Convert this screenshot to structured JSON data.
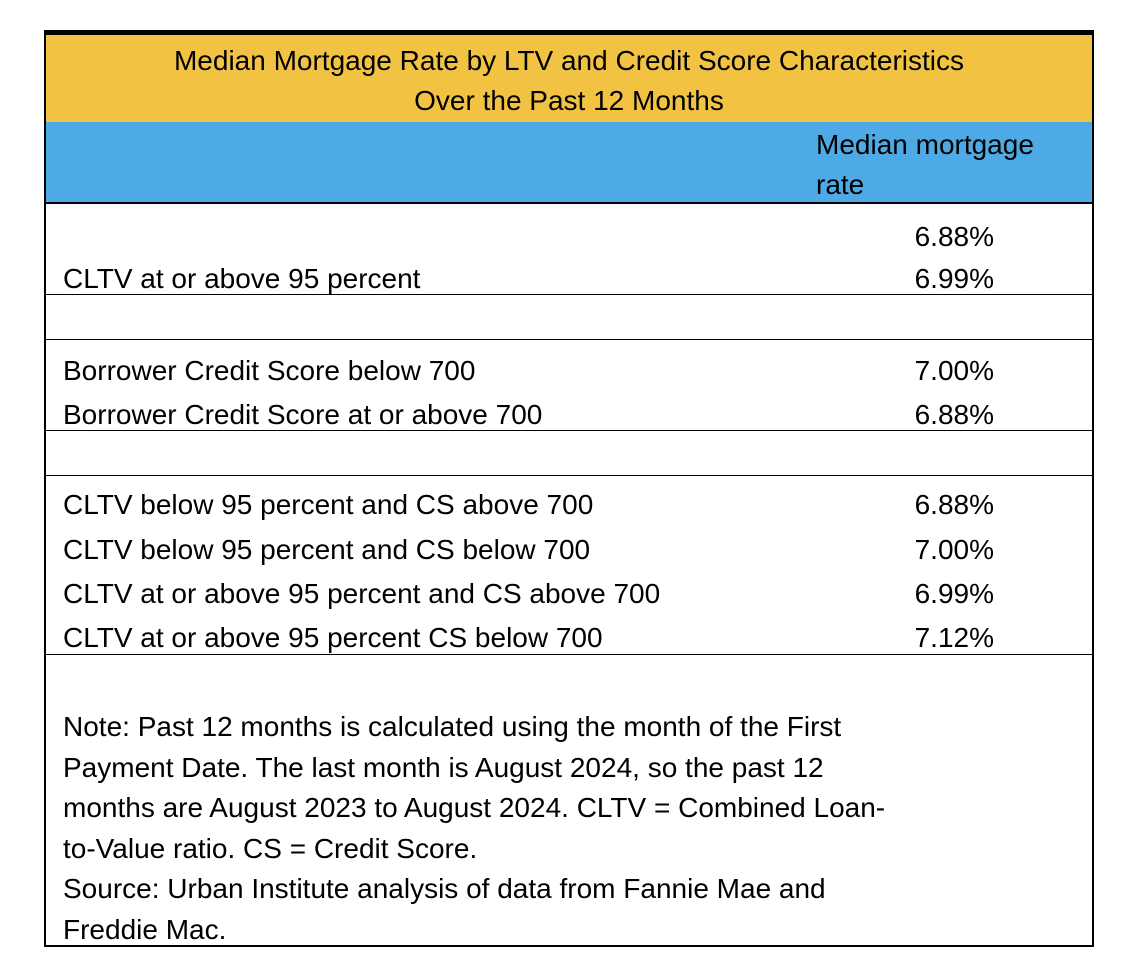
{
  "chart_data": {
    "type": "table",
    "title": "Median Mortgage Rate by LTV and Credit Score Characteristics Over the Past 12 Months",
    "title_lines": [
      "Median Mortgage Rate by LTV and Credit Score Characteristics",
      "Over the Past 12 Months"
    ],
    "columns": [
      "",
      "Median mortgage rate"
    ],
    "column_header_lines": [
      "Median mortgage",
      "rate"
    ],
    "groups": [
      {
        "rows": [
          {
            "label": "",
            "value": "6.88%"
          },
          {
            "label": "CLTV at or above 95 percent",
            "value": "6.99%"
          }
        ]
      },
      {
        "rows": [
          {
            "label": "Borrower Credit Score below 700",
            "value": "7.00%"
          },
          {
            "label": "Borrower Credit Score at or above 700",
            "value": "6.88%"
          }
        ]
      },
      {
        "rows": [
          {
            "label": "CLTV below 95 percent and CS above 700",
            "value": "6.88%"
          },
          {
            "label": "CLTV below 95 percent and CS below 700",
            "value": "7.00%"
          },
          {
            "label": "CLTV at or above 95 percent and CS above 700",
            "value": "6.99%"
          },
          {
            "label": "CLTV at or above 95 percent CS below 700",
            "value": "7.12%"
          }
        ]
      }
    ],
    "note_lines": [
      "Note: Past 12 months is calculated using the month of the First",
      "Payment Date. The last month is August 2024, so the past 12",
      "months are August 2023 to August 2024. CLTV = Combined Loan-",
      "to-Value ratio. CS = Credit Score.",
      "Source: Urban Institute analysis of data from Fannie Mae and",
      "Freddie Mac."
    ],
    "colors": {
      "title_bg": "#f2c343",
      "header_bg": "#4eaae6"
    }
  }
}
